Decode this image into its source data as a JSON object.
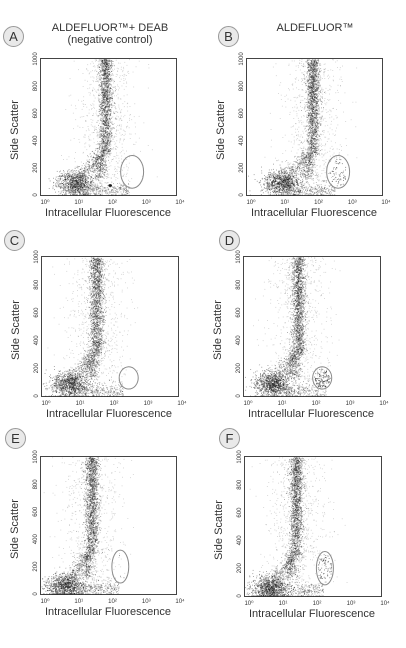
{
  "columns": {
    "left_title": "ALDEFLUOR™+ DEAB",
    "left_subtitle": "(negative control)",
    "right_title": "ALDEFLUOR™"
  },
  "panel_letters": [
    "A",
    "B",
    "C",
    "D",
    "E",
    "F"
  ],
  "colors": {
    "dots": "#1a1a1a",
    "frame": "#444444",
    "gate": "#8a8a8a",
    "badge": "#e9e9e9"
  },
  "chart_data": [
    {
      "panel": "A",
      "type": "scatter",
      "xlabel": "Intracellular Fluorescence",
      "ylabel": "Side Scatter",
      "x_scale": "log",
      "xlim": [
        1,
        10000
      ],
      "ylim": [
        0,
        1000
      ],
      "xticks": [
        "10⁰",
        "10¹",
        "10²",
        "10³",
        "10⁴"
      ],
      "yticks": [
        "0",
        "200",
        "400",
        "600",
        "800",
        "1000"
      ],
      "gate": {
        "x_center_log": 2.7,
        "y_center": 170,
        "x_radius_log": 0.34,
        "y_radius": 120
      },
      "gate_events": 0,
      "lymph_cluster": {
        "x_log": 1.0,
        "y": 90
      },
      "main_population_x_log": 1.9,
      "stray_event": true
    },
    {
      "panel": "B",
      "type": "scatter",
      "xlabel": "Intracellular Fluorescence",
      "ylabel": "Side Scatter",
      "x_scale": "log",
      "xlim": [
        1,
        10000
      ],
      "ylim": [
        0,
        1000
      ],
      "xticks": [
        "10⁰",
        "10¹",
        "10²",
        "10³",
        "10⁴"
      ],
      "yticks": [
        "0",
        "200",
        "400",
        "600",
        "800",
        "1000"
      ],
      "gate": {
        "x_center_log": 2.7,
        "y_center": 170,
        "x_radius_log": 0.34,
        "y_radius": 120
      },
      "gate_events": 60,
      "lymph_cluster": {
        "x_log": 1.0,
        "y": 90
      },
      "main_population_x_log": 1.95,
      "stray_event": false
    },
    {
      "panel": "C",
      "type": "scatter",
      "xlabel": "Intracellular Fluorescence",
      "ylabel": "Side Scatter",
      "x_scale": "log",
      "xlim": [
        1,
        10000
      ],
      "ylim": [
        0,
        1000
      ],
      "xticks": [
        "10⁰",
        "10¹",
        "10²",
        "10³",
        "10⁴"
      ],
      "yticks": [
        "0",
        "200",
        "400",
        "600",
        "800",
        "1000"
      ],
      "gate": {
        "x_center_log": 2.55,
        "y_center": 130,
        "x_radius_log": 0.28,
        "y_radius": 80
      },
      "gate_events": 0,
      "lymph_cluster": {
        "x_log": 0.8,
        "y": 90
      },
      "main_population_x_log": 1.6,
      "stray_event": false
    },
    {
      "panel": "D",
      "type": "scatter",
      "xlabel": "Intracellular Fluorescence",
      "ylabel": "Side Scatter",
      "x_scale": "log",
      "xlim": [
        1,
        10000
      ],
      "ylim": [
        0,
        1000
      ],
      "xticks": [
        "10⁰",
        "10¹",
        "10²",
        "10³",
        "10⁴"
      ],
      "yticks": [
        "0",
        "200",
        "400",
        "600",
        "800",
        "1000"
      ],
      "gate": {
        "x_center_log": 2.3,
        "y_center": 130,
        "x_radius_log": 0.28,
        "y_radius": 80
      },
      "gate_events": 120,
      "lymph_cluster": {
        "x_log": 0.8,
        "y": 90
      },
      "main_population_x_log": 1.6,
      "stray_event": false
    },
    {
      "panel": "E",
      "type": "scatter",
      "xlabel": "Intracellular Fluorescence",
      "ylabel": "Side Scatter",
      "x_scale": "log",
      "xlim": [
        1,
        10000
      ],
      "ylim": [
        0,
        1000
      ],
      "xticks": [
        "10⁰",
        "10¹",
        "10²",
        "10³",
        "10⁴"
      ],
      "yticks": [
        "0",
        "200",
        "400",
        "600",
        "800",
        "1000"
      ],
      "gate": {
        "x_center_log": 2.35,
        "y_center": 200,
        "x_radius_log": 0.25,
        "y_radius": 120
      },
      "gate_events": 3,
      "lymph_cluster": {
        "x_log": 0.7,
        "y": 60
      },
      "main_population_x_log": 1.5,
      "stray_event": false
    },
    {
      "panel": "F",
      "type": "scatter",
      "xlabel": "Intracellular Fluorescence",
      "ylabel": "Side Scatter",
      "x_scale": "log",
      "xlim": [
        1,
        10000
      ],
      "ylim": [
        0,
        1000
      ],
      "xticks": [
        "10⁰",
        "10¹",
        "10²",
        "10³",
        "10⁴"
      ],
      "yticks": [
        "0",
        "200",
        "400",
        "600",
        "800",
        "1000"
      ],
      "gate": {
        "x_center_log": 2.35,
        "y_center": 200,
        "x_radius_log": 0.25,
        "y_radius": 120
      },
      "gate_events": 70,
      "lymph_cluster": {
        "x_log": 0.7,
        "y": 60
      },
      "main_population_x_log": 1.5,
      "stray_event": false
    }
  ]
}
